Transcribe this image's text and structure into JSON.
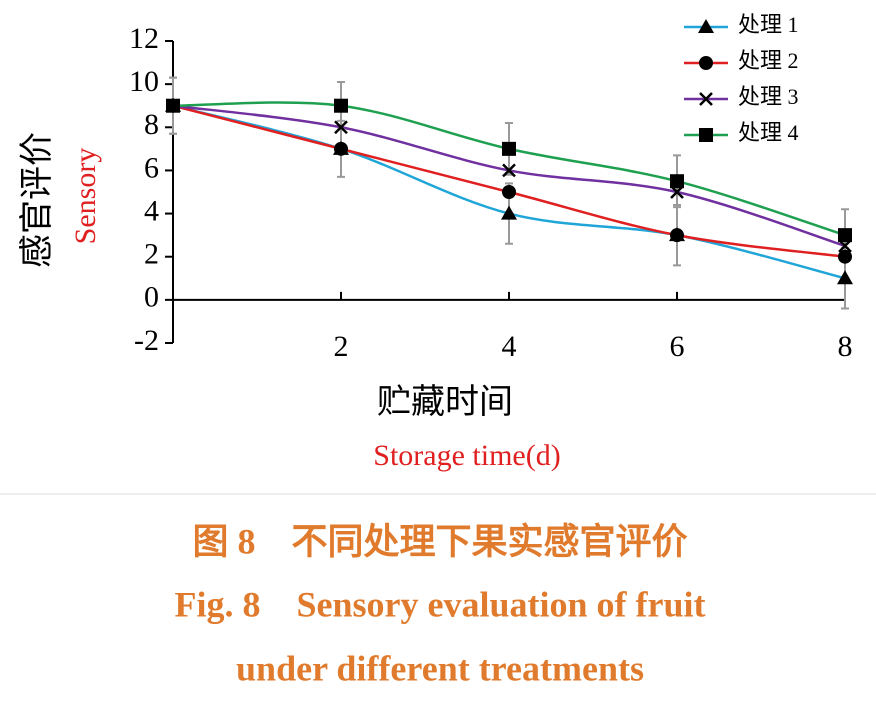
{
  "chart_data": {
    "type": "line",
    "y_title": "感官评价",
    "y_title_en": "Sensory",
    "x_title": "贮藏时间",
    "x_title_en": "Storage time(d)",
    "caption": [
      "图 8　不同处理下果实感官评价",
      "Fig. 8　Sensory evaluation of fruit",
      "under different treatments"
    ],
    "x": [
      0,
      2,
      4,
      6,
      8
    ],
    "xlim": [
      0,
      8
    ],
    "xticks": [
      2,
      4,
      6,
      8
    ],
    "ylim": [
      -2,
      12
    ],
    "yticks": [
      -2,
      0,
      2,
      4,
      6,
      8,
      10,
      12
    ],
    "series": [
      {
        "name": "处理 1",
        "color": "#1fa5d8",
        "marker": "triangle",
        "values": [
          9,
          7,
          4,
          3,
          1
        ],
        "errors": [
          1.3,
          1.3,
          1.4,
          1.4,
          1.4
        ]
      },
      {
        "name": "处理 2",
        "color": "#e02020",
        "marker": "circle",
        "values": [
          9,
          7,
          5,
          3,
          2
        ]
      },
      {
        "name": "处理 3",
        "color": "#7030a0",
        "marker": "cross",
        "values": [
          9,
          8,
          6,
          5,
          2.5
        ]
      },
      {
        "name": "处理 4",
        "color": "#1fa050",
        "marker": "square",
        "values": [
          9,
          9,
          7,
          5.5,
          3
        ],
        "errors": [
          1.3,
          1.1,
          1.2,
          1.2,
          1.2
        ]
      }
    ]
  }
}
